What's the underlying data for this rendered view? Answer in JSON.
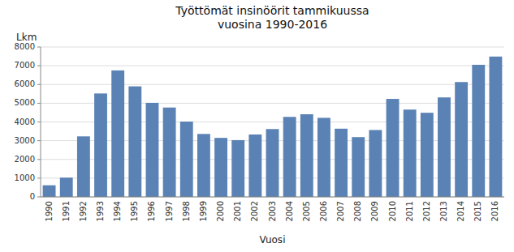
{
  "chart_data": {
    "type": "bar",
    "title": "Työttömät insinöörit tammikuussa\nvuosina 1990-2016",
    "xlabel": "Vuosi",
    "ylabel": "Lkm",
    "categories": [
      "1990",
      "1991",
      "1992",
      "1993",
      "1994",
      "1995",
      "1996",
      "1997",
      "1998",
      "1999",
      "2000",
      "2001",
      "2002",
      "2003",
      "2004",
      "2005",
      "2006",
      "2007",
      "2008",
      "2009",
      "2010",
      "2011",
      "2012",
      "2013",
      "2014",
      "2015",
      "2016"
    ],
    "values": [
      620,
      1030,
      3230,
      5520,
      6750,
      5900,
      5020,
      4770,
      4020,
      3360,
      3150,
      3030,
      3330,
      3620,
      4270,
      4410,
      4220,
      3640,
      3190,
      3570,
      5230,
      4660,
      4490,
      5310,
      6130,
      7050,
      7490
    ],
    "color": "#5b82b5",
    "ylim": [
      0,
      8000
    ],
    "yticks": [
      0,
      1000,
      2000,
      3000,
      4000,
      5000,
      6000,
      7000,
      8000
    ],
    "grid": true
  }
}
